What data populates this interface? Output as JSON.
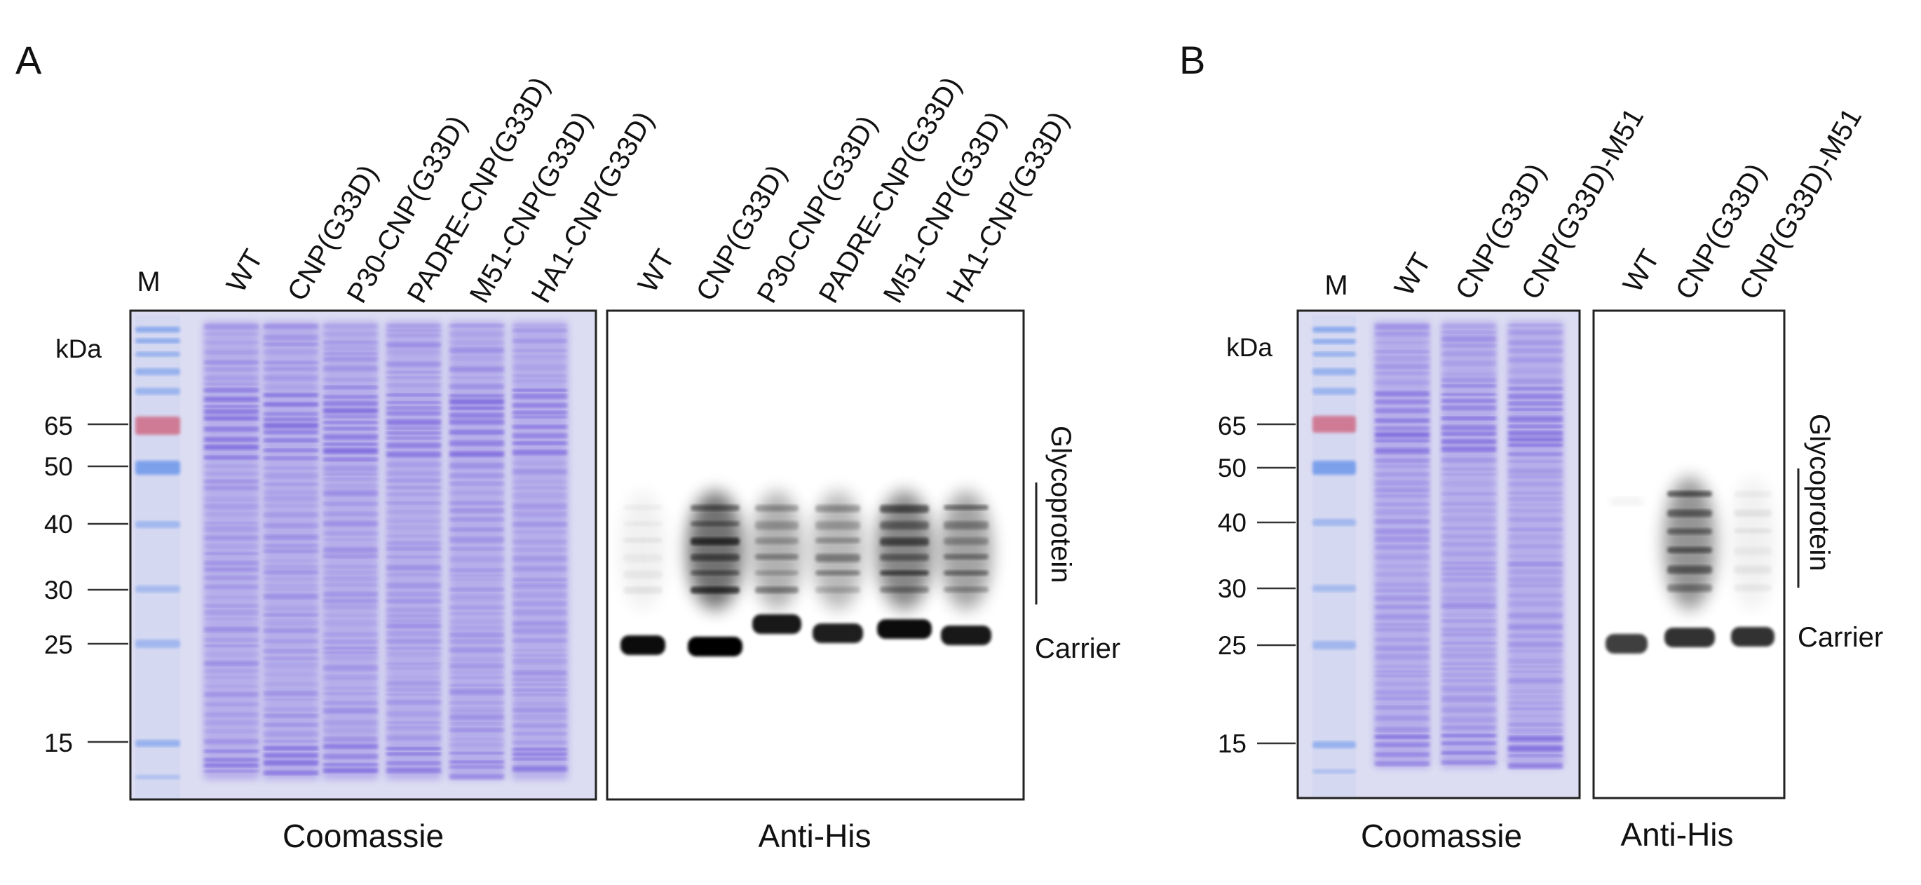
{
  "panels": [
    {
      "label": "A",
      "coomassie": {
        "marker_lane": "M",
        "lanes": [
          "WT",
          "CNP(G33D)",
          "P30-CNP(G33D)",
          "PADRE-CNP(G33D)",
          "M51-CNP(G33D)",
          "HA1-CNP(G33D)"
        ],
        "caption": "Coomassie"
      },
      "antihis": {
        "lanes": [
          "WT",
          "CNP(G33D)",
          "P30-CNP(G33D)",
          "PADRE-CNP(G33D)",
          "M51-CNP(G33D)",
          "HA1-CNP(G33D)"
        ],
        "caption": "Anti-His",
        "glyco_intensity": [
          0.1,
          1.0,
          0.55,
          0.5,
          0.85,
          0.65
        ],
        "carrier_intensity": [
          0.95,
          1.0,
          0.9,
          0.88,
          0.95,
          0.9
        ]
      },
      "mw_unit": "kDa",
      "mw_markers": [
        "65",
        "50",
        "40",
        "30",
        "25",
        "15"
      ],
      "glycoprotein_label": "Glycoprotein",
      "carrier_label": "Carrier"
    },
    {
      "label": "B",
      "coomassie": {
        "marker_lane": "M",
        "lanes": [
          "WT",
          "CNP(G33D)",
          "CNP(G33D)-M51"
        ],
        "caption": "Coomassie"
      },
      "antihis": {
        "lanes": [
          "WT",
          "CNP(G33D)",
          "CNP(G33D)-M51"
        ],
        "caption": "Anti-His",
        "glyco_intensity": [
          0.05,
          0.75,
          0.1
        ],
        "carrier_intensity": [
          0.75,
          0.8,
          0.8
        ]
      },
      "mw_unit": "kDa",
      "mw_markers": [
        "65",
        "50",
        "40",
        "30",
        "25",
        "15"
      ],
      "glycoprotein_label": "Glycoprotein",
      "carrier_label": "Carrier"
    }
  ],
  "colors": {
    "coomassie_bg": "#dcdcf2",
    "coomassie_band": "#6246d8",
    "marker_pink": "#d66f86",
    "marker_blue": "#6e98ea",
    "blot_band": "#000000"
  }
}
